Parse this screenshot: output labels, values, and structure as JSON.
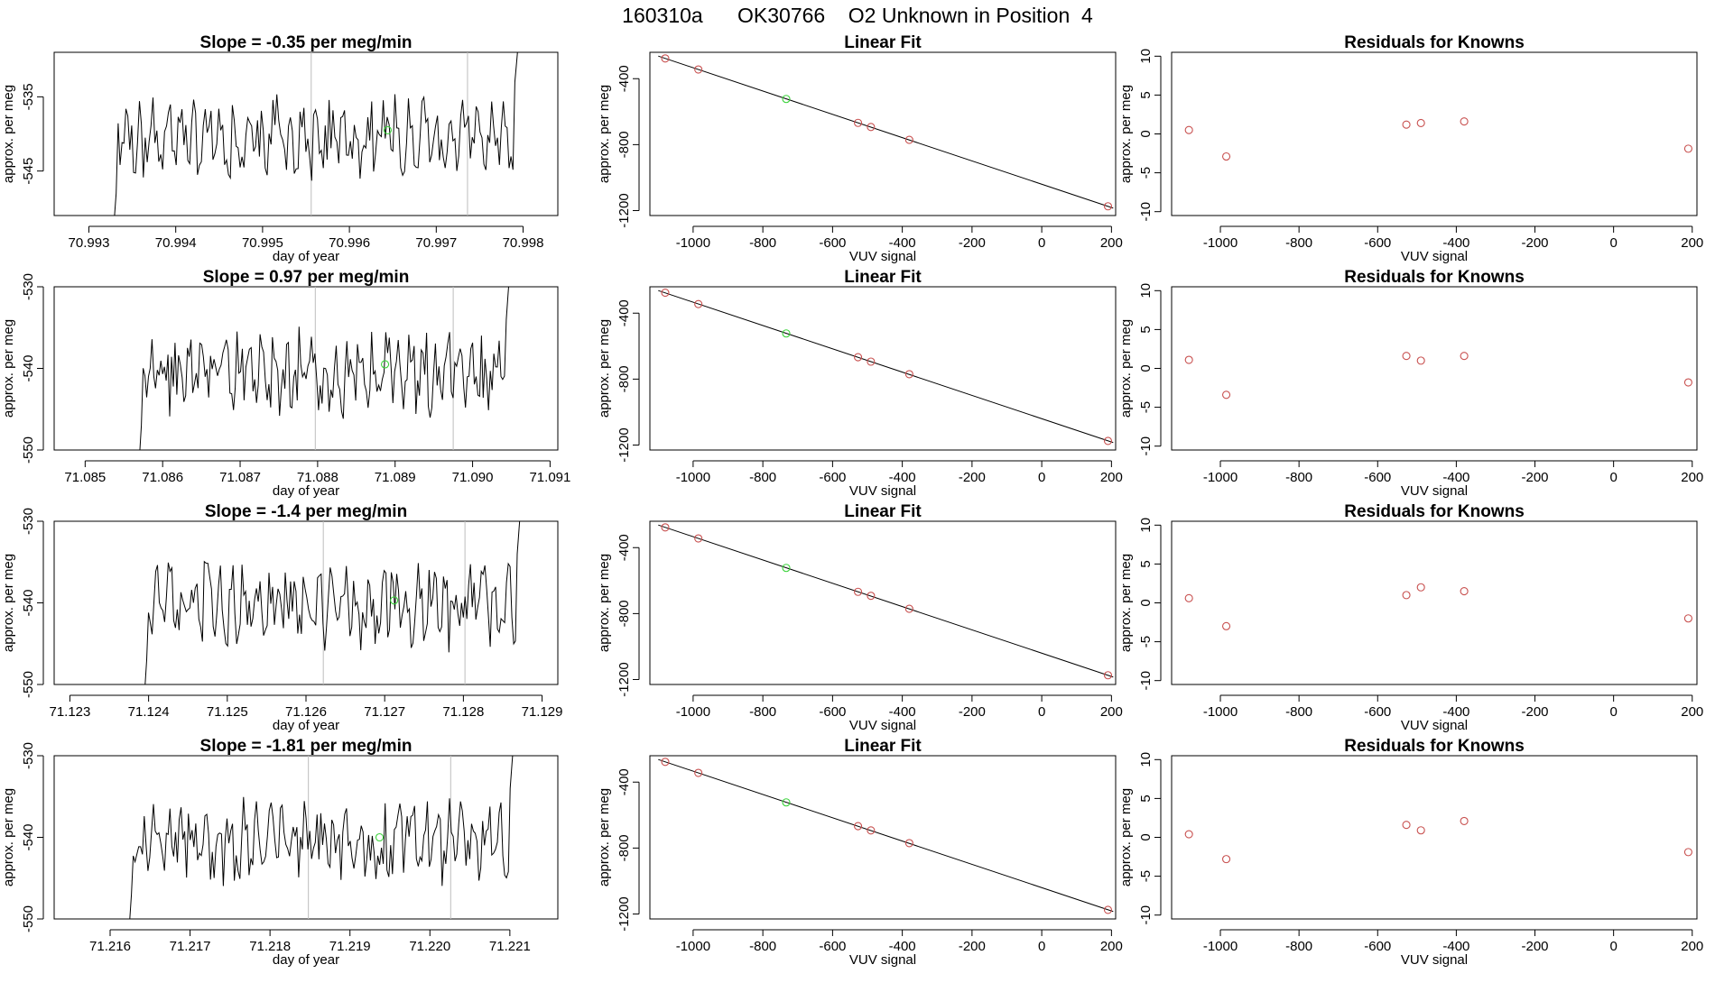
{
  "page_title": "160310a      OK30766    O2 Unknown in Position  4",
  "colors": {
    "known_point": "#c8504f",
    "unknown_point": "#39d239",
    "vertical_marker": "#bdbdbd",
    "line": "#000000"
  },
  "chart_data": [
    {
      "type": "line",
      "panel": "slope",
      "row": 1,
      "title": "Slope =  -0.35  per meg/min",
      "xlabel": "day of year",
      "ylabel": "approx. per meg",
      "xlim": [
        70.9926,
        70.9984
      ],
      "ylim": [
        -551,
        -529
      ],
      "xticks": [
        70.993,
        70.994,
        70.995,
        70.996,
        70.997,
        70.998
      ],
      "xtick_labels": [
        "70.993",
        "70.994",
        "70.995",
        "70.996",
        "70.997",
        "70.998"
      ],
      "yticks": [
        -535,
        -545
      ],
      "ytick_labels": [
        "-535",
        "-545"
      ],
      "vlines": [
        70.99556,
        70.99736
      ],
      "start": 70.99327,
      "end": 70.99795,
      "unknown_point": {
        "x": 70.99644,
        "y": -539.5
      },
      "seed": 11
    },
    {
      "type": "line",
      "panel": "slope",
      "row": 2,
      "title": "Slope =  0.97  per meg/min",
      "xlabel": "day of year",
      "ylabel": "approx. per meg",
      "xlim": [
        71.0846,
        71.0911
      ],
      "ylim": [
        -550,
        -530
      ],
      "xticks": [
        71.085,
        71.086,
        71.087,
        71.088,
        71.089,
        71.09,
        71.091
      ],
      "xtick_labels": [
        "71.085",
        "71.086",
        "71.087",
        "71.088",
        "71.089",
        "71.090",
        "71.091"
      ],
      "yticks": [
        -530,
        -540,
        -550
      ],
      "ytick_labels": [
        "-530",
        "-540",
        "-550"
      ],
      "vlines": [
        71.08797,
        71.08975
      ],
      "start": 71.08568,
      "end": 71.09048,
      "unknown_point": {
        "x": 71.08887,
        "y": -539.5
      },
      "seed": 23
    },
    {
      "type": "line",
      "panel": "slope",
      "row": 3,
      "title": "Slope =  -1.4  per meg/min",
      "xlabel": "day of year",
      "ylabel": "approx. per meg",
      "xlim": [
        71.1228,
        71.1292
      ],
      "ylim": [
        -550,
        -530
      ],
      "xticks": [
        71.123,
        71.124,
        71.125,
        71.126,
        71.127,
        71.128,
        71.129
      ],
      "xtick_labels": [
        "71.123",
        "71.124",
        "71.125",
        "71.126",
        "71.127",
        "71.128",
        "71.129"
      ],
      "yticks": [
        -530,
        -540,
        -550
      ],
      "ytick_labels": [
        "-530",
        "-540",
        "-550"
      ],
      "vlines": [
        71.12622,
        71.12802
      ],
      "start": 71.12393,
      "end": 71.12873,
      "unknown_point": {
        "x": 71.12712,
        "y": -539.7
      },
      "seed": 37
    },
    {
      "type": "line",
      "panel": "slope",
      "row": 4,
      "title": "Slope =  -1.81  per meg/min",
      "xlabel": "day of year",
      "ylabel": "approx. per meg",
      "xlim": [
        71.2153,
        71.2216
      ],
      "ylim": [
        -550,
        -530
      ],
      "xticks": [
        71.216,
        71.217,
        71.218,
        71.219,
        71.22,
        71.221
      ],
      "xtick_labels": [
        "71.216",
        "71.217",
        "71.218",
        "71.219",
        "71.220",
        "71.221"
      ],
      "yticks": [
        -530,
        -540,
        -550
      ],
      "ytick_labels": [
        "-530",
        "-540",
        "-550"
      ],
      "vlines": [
        71.21848,
        71.22026
      ],
      "start": 71.21622,
      "end": 71.22105,
      "unknown_point": {
        "x": 71.21937,
        "y": -540.0
      },
      "seed": 53
    },
    {
      "type": "scatter",
      "panel": "linear-fit",
      "row": 1,
      "title": "Linear Fit",
      "xlabel": "VUV signal",
      "ylabel": "approx. per meg",
      "xlim": [
        -1124,
        212
      ],
      "ylim": [
        -1230,
        -240
      ],
      "xticks": [
        -1000,
        -800,
        -600,
        -400,
        -200,
        0,
        200
      ],
      "xtick_labels": [
        "-1000",
        "-800",
        "-600",
        "-400",
        "-200",
        "0",
        "200"
      ],
      "yticks": [
        -400,
        -800,
        -1200
      ],
      "ytick_labels": [
        "-400",
        "-800",
        "-1200"
      ],
      "fit_line": {
        "x": [
          -1100,
          205
        ],
        "y": [
          -263,
          -1185
        ]
      },
      "known_points": [
        {
          "x": -1080,
          "y": -277
        },
        {
          "x": -985,
          "y": -344
        },
        {
          "x": -527,
          "y": -668
        },
        {
          "x": -490,
          "y": -693
        },
        {
          "x": -380,
          "y": -771
        },
        {
          "x": 190,
          "y": -1174
        }
      ],
      "unknown_points": [
        {
          "x": -733,
          "y": -523
        }
      ]
    },
    {
      "type": "scatter",
      "panel": "linear-fit",
      "row": 2,
      "title": "Linear Fit",
      "xlabel": "VUV signal",
      "ylabel": "approx. per meg",
      "xlim": [
        -1124,
        212
      ],
      "ylim": [
        -1230,
        -240
      ],
      "xticks": [
        -1000,
        -800,
        -600,
        -400,
        -200,
        0,
        200
      ],
      "xtick_labels": [
        "-1000",
        "-800",
        "-600",
        "-400",
        "-200",
        "0",
        "200"
      ],
      "yticks": [
        -400,
        -800,
        -1200
      ],
      "ytick_labels": [
        "-400",
        "-800",
        "-1200"
      ],
      "fit_line": {
        "x": [
          -1100,
          205
        ],
        "y": [
          -263,
          -1185
        ]
      },
      "known_points": [
        {
          "x": -1080,
          "y": -276
        },
        {
          "x": -985,
          "y": -345
        },
        {
          "x": -527,
          "y": -667
        },
        {
          "x": -490,
          "y": -694
        },
        {
          "x": -380,
          "y": -770
        },
        {
          "x": 190,
          "y": -1175
        }
      ],
      "unknown_points": [
        {
          "x": -733,
          "y": -523
        }
      ]
    },
    {
      "type": "scatter",
      "panel": "linear-fit",
      "row": 3,
      "title": "Linear Fit",
      "xlabel": "VUV signal",
      "ylabel": "approx. per meg",
      "xlim": [
        -1124,
        212
      ],
      "ylim": [
        -1230,
        -240
      ],
      "xticks": [
        -1000,
        -800,
        -600,
        -400,
        -200,
        0,
        200
      ],
      "xtick_labels": [
        "-1000",
        "-800",
        "-600",
        "-400",
        "-200",
        "0",
        "200"
      ],
      "yticks": [
        -400,
        -800,
        -1200
      ],
      "ytick_labels": [
        "-400",
        "-800",
        "-1200"
      ],
      "fit_line": {
        "x": [
          -1100,
          205
        ],
        "y": [
          -263,
          -1185
        ]
      },
      "known_points": [
        {
          "x": -1080,
          "y": -277
        },
        {
          "x": -985,
          "y": -344
        },
        {
          "x": -527,
          "y": -668
        },
        {
          "x": -490,
          "y": -692
        },
        {
          "x": -380,
          "y": -771
        },
        {
          "x": 190,
          "y": -1174
        }
      ],
      "unknown_points": [
        {
          "x": -733,
          "y": -523
        }
      ]
    },
    {
      "type": "scatter",
      "panel": "linear-fit",
      "row": 4,
      "title": "Linear Fit",
      "xlabel": "VUV signal",
      "ylabel": "approx. per meg",
      "xlim": [
        -1124,
        212
      ],
      "ylim": [
        -1230,
        -240
      ],
      "xticks": [
        -1000,
        -800,
        -600,
        -400,
        -200,
        0,
        200
      ],
      "xtick_labels": [
        "-1000",
        "-800",
        "-600",
        "-400",
        "-200",
        "0",
        "200"
      ],
      "yticks": [
        -400,
        -800,
        -1200
      ],
      "ytick_labels": [
        "-400",
        "-800",
        "-1200"
      ],
      "fit_line": {
        "x": [
          -1100,
          205
        ],
        "y": [
          -263,
          -1185
        ]
      },
      "known_points": [
        {
          "x": -1080,
          "y": -277
        },
        {
          "x": -985,
          "y": -344
        },
        {
          "x": -527,
          "y": -667
        },
        {
          "x": -490,
          "y": -693
        },
        {
          "x": -380,
          "y": -770
        },
        {
          "x": 190,
          "y": -1175
        }
      ],
      "unknown_points": [
        {
          "x": -733,
          "y": -523
        }
      ]
    },
    {
      "type": "scatter",
      "panel": "residuals",
      "row": 1,
      "title": "Residuals for Knowns",
      "xlabel": "VUV signal",
      "ylabel": "approx. per meg",
      "xlim": [
        -1124,
        212
      ],
      "ylim": [
        -10.5,
        10.5
      ],
      "xticks": [
        -1000,
        -800,
        -600,
        -400,
        -200,
        0,
        200
      ],
      "xtick_labels": [
        "-1000",
        "-800",
        "-600",
        "-400",
        "-200",
        "0",
        "200"
      ],
      "yticks": [
        10,
        5,
        0,
        -5,
        -10
      ],
      "ytick_labels": [
        "10",
        "5",
        "0",
        "-5",
        "-10"
      ],
      "known_points": [
        {
          "x": -1080,
          "y": 0.5
        },
        {
          "x": -985,
          "y": -2.9
        },
        {
          "x": -527,
          "y": 1.2
        },
        {
          "x": -490,
          "y": 1.4
        },
        {
          "x": -380,
          "y": 1.6
        },
        {
          "x": 190,
          "y": -1.9
        }
      ]
    },
    {
      "type": "scatter",
      "panel": "residuals",
      "row": 2,
      "title": "Residuals for Knowns",
      "xlabel": "VUV signal",
      "ylabel": "approx. per meg",
      "xlim": [
        -1124,
        212
      ],
      "ylim": [
        -10.5,
        10.5
      ],
      "xticks": [
        -1000,
        -800,
        -600,
        -400,
        -200,
        0,
        200
      ],
      "xtick_labels": [
        "-1000",
        "-800",
        "-600",
        "-400",
        "-200",
        "0",
        "200"
      ],
      "yticks": [
        10,
        5,
        0,
        -5,
        -10
      ],
      "ytick_labels": [
        "10",
        "5",
        "0",
        "-5",
        "-10"
      ],
      "known_points": [
        {
          "x": -1080,
          "y": 1.1
        },
        {
          "x": -985,
          "y": -3.4
        },
        {
          "x": -527,
          "y": 1.6
        },
        {
          "x": -490,
          "y": 1.0
        },
        {
          "x": -380,
          "y": 1.6
        },
        {
          "x": 190,
          "y": -1.8
        }
      ]
    },
    {
      "type": "scatter",
      "panel": "residuals",
      "row": 3,
      "title": "Residuals for Knowns",
      "xlabel": "VUV signal",
      "ylabel": "approx. per meg",
      "xlim": [
        -1124,
        212
      ],
      "ylim": [
        -10.5,
        10.5
      ],
      "xticks": [
        -1000,
        -800,
        -600,
        -400,
        -200,
        0,
        200
      ],
      "xtick_labels": [
        "-1000",
        "-800",
        "-600",
        "-400",
        "-200",
        "0",
        "200"
      ],
      "yticks": [
        10,
        5,
        0,
        -5,
        -10
      ],
      "ytick_labels": [
        "10",
        "5",
        "0",
        "-5",
        "-10"
      ],
      "known_points": [
        {
          "x": -1080,
          "y": 0.6
        },
        {
          "x": -985,
          "y": -3.0
        },
        {
          "x": -527,
          "y": 1.0
        },
        {
          "x": -490,
          "y": 2.0
        },
        {
          "x": -380,
          "y": 1.5
        },
        {
          "x": 190,
          "y": -2.0
        }
      ]
    },
    {
      "type": "scatter",
      "panel": "residuals",
      "row": 4,
      "title": "Residuals for Knowns",
      "xlabel": "VUV signal",
      "ylabel": "approx. per meg",
      "xlim": [
        -1124,
        212
      ],
      "ylim": [
        -10.5,
        10.5
      ],
      "xticks": [
        -1000,
        -800,
        -600,
        -400,
        -200,
        0,
        200
      ],
      "xtick_labels": [
        "-1000",
        "-800",
        "-600",
        "-400",
        "-200",
        "0",
        "200"
      ],
      "yticks": [
        10,
        5,
        0,
        -5,
        -10
      ],
      "ytick_labels": [
        "10",
        "5",
        "0",
        "-5",
        "-10"
      ],
      "known_points": [
        {
          "x": -1080,
          "y": 0.4
        },
        {
          "x": -985,
          "y": -2.8
        },
        {
          "x": -527,
          "y": 1.6
        },
        {
          "x": -490,
          "y": 0.9
        },
        {
          "x": -380,
          "y": 2.1
        },
        {
          "x": 190,
          "y": -1.9
        }
      ]
    }
  ]
}
